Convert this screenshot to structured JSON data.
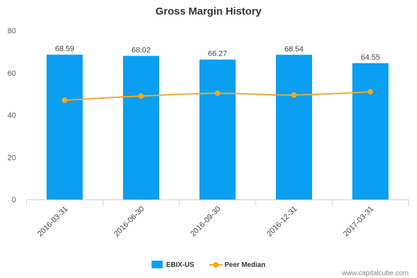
{
  "chart_data": {
    "type": "bar",
    "title": "Gross Margin History",
    "categories": [
      "2016-03-31",
      "2016-06-30",
      "2016-09-30",
      "2016-12-31",
      "2017-03-31"
    ],
    "ylim": [
      0,
      80
    ],
    "yticks": [
      0,
      20,
      40,
      60,
      80
    ],
    "series": [
      {
        "name": "EBIX-US",
        "type": "bar",
        "color": "#0a9ff0",
        "values": [
          68.59,
          68.02,
          66.27,
          68.54,
          64.55
        ],
        "labels": [
          "68.59",
          "68.02",
          "66.27",
          "68.54",
          "64.55"
        ]
      },
      {
        "name": "Peer Median",
        "type": "line",
        "color": "#f5a623",
        "values": [
          47.0,
          49.0,
          50.3,
          49.5,
          51.0
        ]
      }
    ],
    "legend": "bottom-center",
    "grid": false
  },
  "credit": "www.capitalcube.com"
}
